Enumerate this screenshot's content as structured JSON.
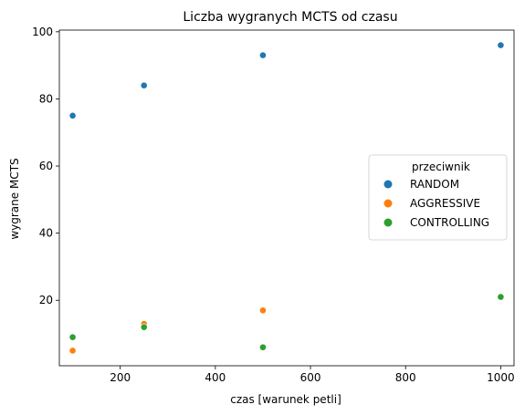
{
  "chart_data": {
    "type": "scatter",
    "title": "Liczba wygranych MCTS od czasu",
    "xlabel": "czas [warunek petli]",
    "ylabel": "wygrane MCTS",
    "xlim": [
      72,
      1028
    ],
    "ylim": [
      0.5,
      100.5
    ],
    "xticks": [
      200,
      400,
      600,
      800,
      1000
    ],
    "yticks": [
      20,
      40,
      60,
      80,
      100
    ],
    "grid": false,
    "legend": {
      "title": "przeciwnik",
      "placement": "center-right"
    },
    "series": [
      {
        "name": "RANDOM",
        "color": "#1f77b4",
        "points": [
          [
            100,
            75
          ],
          [
            250,
            84
          ],
          [
            500,
            93
          ],
          [
            1000,
            96
          ]
        ]
      },
      {
        "name": "AGGRESSIVE",
        "color": "#ff7f0e",
        "points": [
          [
            100,
            5
          ],
          [
            250,
            13
          ],
          [
            500,
            17
          ]
        ]
      },
      {
        "name": "CONTROLLING",
        "color": "#2ca02c",
        "points": [
          [
            100,
            9
          ],
          [
            250,
            12
          ],
          [
            500,
            6
          ],
          [
            1000,
            21
          ]
        ]
      }
    ]
  }
}
